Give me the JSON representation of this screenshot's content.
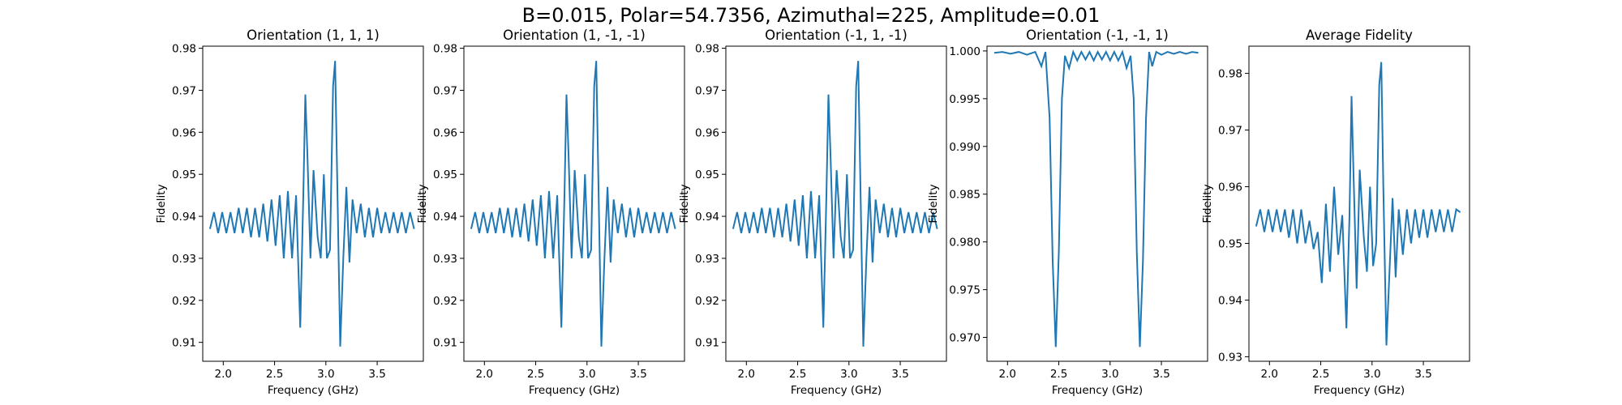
{
  "figure": {
    "title": "B=0.015, Polar=54.7356, Azimuthal=225, Amplitude=0.01"
  },
  "colors": {
    "series": "#1f77b4"
  },
  "chart_data": [
    {
      "type": "line",
      "title": "Orientation (1, 1, 1)",
      "xlabel": "Frequency (GHz)",
      "ylabel": "Fidelity",
      "xlim": [
        1.8,
        3.95
      ],
      "ylim": [
        0.9055,
        0.9805
      ],
      "xticks": [
        "2.0",
        "2.5",
        "3.0",
        "3.5"
      ],
      "yticks": [
        "0.91",
        "0.92",
        "0.93",
        "0.94",
        "0.95",
        "0.96",
        "0.97",
        "0.98"
      ],
      "grid": false,
      "series_x": [
        1.87,
        1.91,
        1.95,
        1.99,
        2.03,
        2.07,
        2.11,
        2.15,
        2.19,
        2.23,
        2.27,
        2.31,
        2.35,
        2.39,
        2.43,
        2.47,
        2.51,
        2.55,
        2.59,
        2.63,
        2.67,
        2.71,
        2.75,
        2.78,
        2.8,
        2.82,
        2.85,
        2.88,
        2.92,
        2.95,
        2.98,
        3.01,
        3.04,
        3.07,
        3.09,
        3.11,
        3.14,
        3.17,
        3.2,
        3.23,
        3.26,
        3.3,
        3.34,
        3.38,
        3.42,
        3.46,
        3.5,
        3.54,
        3.58,
        3.62,
        3.66,
        3.7,
        3.74,
        3.78,
        3.82,
        3.86
      ],
      "series_y": [
        0.937,
        0.941,
        0.936,
        0.941,
        0.936,
        0.941,
        0.936,
        0.942,
        0.936,
        0.942,
        0.935,
        0.942,
        0.935,
        0.943,
        0.934,
        0.944,
        0.933,
        0.945,
        0.93,
        0.946,
        0.93,
        0.945,
        0.9135,
        0.945,
        0.969,
        0.955,
        0.93,
        0.951,
        0.935,
        0.93,
        0.95,
        0.93,
        0.932,
        0.971,
        0.977,
        0.95,
        0.909,
        0.93,
        0.947,
        0.929,
        0.944,
        0.936,
        0.943,
        0.935,
        0.942,
        0.935,
        0.942,
        0.936,
        0.941,
        0.936,
        0.941,
        0.936,
        0.941,
        0.936,
        0.941,
        0.937
      ]
    },
    {
      "type": "line",
      "title": "Orientation (1, -1, -1)",
      "xlabel": "Frequency (GHz)",
      "ylabel": "Fidelity",
      "xlim": [
        1.8,
        3.95
      ],
      "ylim": [
        0.9055,
        0.9805
      ],
      "xticks": [
        "2.0",
        "2.5",
        "3.0",
        "3.5"
      ],
      "yticks": [
        "0.91",
        "0.92",
        "0.93",
        "0.94",
        "0.95",
        "0.96",
        "0.97",
        "0.98"
      ],
      "grid": false,
      "series_x": [
        1.87,
        1.91,
        1.95,
        1.99,
        2.03,
        2.07,
        2.11,
        2.15,
        2.19,
        2.23,
        2.27,
        2.31,
        2.35,
        2.39,
        2.43,
        2.47,
        2.51,
        2.55,
        2.59,
        2.63,
        2.67,
        2.71,
        2.75,
        2.78,
        2.8,
        2.82,
        2.85,
        2.88,
        2.92,
        2.95,
        2.98,
        3.01,
        3.04,
        3.07,
        3.09,
        3.11,
        3.14,
        3.17,
        3.2,
        3.23,
        3.26,
        3.3,
        3.34,
        3.38,
        3.42,
        3.46,
        3.5,
        3.54,
        3.58,
        3.62,
        3.66,
        3.7,
        3.74,
        3.78,
        3.82,
        3.86
      ],
      "series_y": [
        0.937,
        0.941,
        0.936,
        0.941,
        0.936,
        0.941,
        0.936,
        0.942,
        0.936,
        0.942,
        0.935,
        0.942,
        0.935,
        0.943,
        0.934,
        0.944,
        0.933,
        0.945,
        0.93,
        0.946,
        0.93,
        0.945,
        0.9135,
        0.945,
        0.969,
        0.955,
        0.93,
        0.951,
        0.935,
        0.93,
        0.95,
        0.93,
        0.932,
        0.971,
        0.977,
        0.95,
        0.909,
        0.93,
        0.947,
        0.929,
        0.944,
        0.936,
        0.943,
        0.935,
        0.942,
        0.935,
        0.942,
        0.936,
        0.941,
        0.936,
        0.941,
        0.936,
        0.941,
        0.936,
        0.941,
        0.937
      ]
    },
    {
      "type": "line",
      "title": "Orientation (-1, 1, -1)",
      "xlabel": "Frequency (GHz)",
      "ylabel": "Fidelity",
      "xlim": [
        1.8,
        3.95
      ],
      "ylim": [
        0.9055,
        0.9805
      ],
      "xticks": [
        "2.0",
        "2.5",
        "3.0",
        "3.5"
      ],
      "yticks": [
        "0.91",
        "0.92",
        "0.93",
        "0.94",
        "0.95",
        "0.96",
        "0.97",
        "0.98"
      ],
      "grid": false,
      "series_x": [
        1.87,
        1.91,
        1.95,
        1.99,
        2.03,
        2.07,
        2.11,
        2.15,
        2.19,
        2.23,
        2.27,
        2.31,
        2.35,
        2.39,
        2.43,
        2.47,
        2.51,
        2.55,
        2.59,
        2.63,
        2.67,
        2.71,
        2.75,
        2.78,
        2.8,
        2.82,
        2.85,
        2.88,
        2.92,
        2.95,
        2.98,
        3.01,
        3.04,
        3.07,
        3.09,
        3.11,
        3.14,
        3.17,
        3.2,
        3.23,
        3.26,
        3.3,
        3.34,
        3.38,
        3.42,
        3.46,
        3.5,
        3.54,
        3.58,
        3.62,
        3.66,
        3.7,
        3.74,
        3.78,
        3.82,
        3.86
      ],
      "series_y": [
        0.937,
        0.941,
        0.936,
        0.941,
        0.936,
        0.941,
        0.936,
        0.942,
        0.936,
        0.942,
        0.935,
        0.942,
        0.935,
        0.943,
        0.934,
        0.944,
        0.933,
        0.945,
        0.93,
        0.946,
        0.93,
        0.945,
        0.9135,
        0.945,
        0.969,
        0.955,
        0.93,
        0.951,
        0.935,
        0.93,
        0.95,
        0.93,
        0.932,
        0.971,
        0.977,
        0.95,
        0.909,
        0.93,
        0.947,
        0.929,
        0.944,
        0.936,
        0.943,
        0.935,
        0.942,
        0.935,
        0.942,
        0.936,
        0.941,
        0.936,
        0.941,
        0.936,
        0.941,
        0.936,
        0.941,
        0.937
      ]
    },
    {
      "type": "line",
      "title": "Orientation (-1, -1, 1)",
      "xlabel": "Frequency (GHz)",
      "ylabel": "Fidelity",
      "xlim": [
        1.8,
        3.95
      ],
      "ylim": [
        0.9675,
        1.0005
      ],
      "xticks": [
        "2.0",
        "2.5",
        "3.0",
        "3.5"
      ],
      "yticks": [
        "0.970",
        "0.975",
        "0.980",
        "0.985",
        "0.990",
        "0.995",
        "1.000"
      ],
      "grid": false,
      "series_x": [
        1.87,
        1.95,
        2.03,
        2.11,
        2.19,
        2.27,
        2.33,
        2.37,
        2.41,
        2.44,
        2.47,
        2.5,
        2.53,
        2.56,
        2.6,
        2.64,
        2.68,
        2.72,
        2.76,
        2.8,
        2.84,
        2.88,
        2.92,
        2.96,
        3.0,
        3.04,
        3.08,
        3.12,
        3.16,
        3.2,
        3.23,
        3.26,
        3.29,
        3.32,
        3.35,
        3.38,
        3.41,
        3.45,
        3.5,
        3.56,
        3.62,
        3.68,
        3.74,
        3.8,
        3.86
      ],
      "series_y": [
        0.9998,
        0.9999,
        0.9997,
        0.9999,
        0.9996,
        0.9999,
        0.9984,
        0.9999,
        0.993,
        0.978,
        0.969,
        0.979,
        0.995,
        0.9995,
        0.9982,
        0.9999,
        0.999,
        0.9999,
        0.9991,
        0.9999,
        0.999,
        0.9999,
        0.9991,
        0.9999,
        0.999,
        0.9999,
        0.999,
        0.9999,
        0.9982,
        0.9995,
        0.995,
        0.979,
        0.969,
        0.978,
        0.993,
        0.9999,
        0.9984,
        0.9999,
        0.9996,
        0.9999,
        0.9997,
        0.9999,
        0.9997,
        0.9999,
        0.9998
      ]
    },
    {
      "type": "line",
      "title": "Average Fidelity",
      "xlabel": "Frequency (GHz)",
      "ylabel": "Fidelity",
      "xlim": [
        1.8,
        3.95
      ],
      "ylim": [
        0.9292,
        0.9848
      ],
      "xticks": [
        "2.0",
        "2.5",
        "3.0",
        "3.5"
      ],
      "yticks": [
        "0.93",
        "0.94",
        "0.95",
        "0.96",
        "0.97",
        "0.98"
      ],
      "grid": false,
      "series_x": [
        1.87,
        1.91,
        1.95,
        1.99,
        2.03,
        2.07,
        2.11,
        2.15,
        2.19,
        2.23,
        2.27,
        2.31,
        2.35,
        2.39,
        2.43,
        2.47,
        2.51,
        2.55,
        2.59,
        2.63,
        2.67,
        2.71,
        2.75,
        2.78,
        2.8,
        2.82,
        2.85,
        2.88,
        2.92,
        2.95,
        2.98,
        3.01,
        3.04,
        3.07,
        3.09,
        3.11,
        3.14,
        3.17,
        3.2,
        3.23,
        3.26,
        3.3,
        3.34,
        3.38,
        3.42,
        3.46,
        3.5,
        3.54,
        3.58,
        3.62,
        3.66,
        3.7,
        3.74,
        3.78,
        3.82,
        3.86
      ],
      "series_y": [
        0.953,
        0.956,
        0.952,
        0.956,
        0.952,
        0.956,
        0.952,
        0.956,
        0.951,
        0.956,
        0.95,
        0.956,
        0.95,
        0.954,
        0.949,
        0.952,
        0.943,
        0.957,
        0.945,
        0.96,
        0.948,
        0.955,
        0.935,
        0.955,
        0.976,
        0.962,
        0.942,
        0.963,
        0.951,
        0.945,
        0.96,
        0.946,
        0.95,
        0.978,
        0.982,
        0.96,
        0.932,
        0.945,
        0.958,
        0.944,
        0.956,
        0.948,
        0.956,
        0.95,
        0.956,
        0.951,
        0.956,
        0.951,
        0.956,
        0.952,
        0.956,
        0.952,
        0.956,
        0.952,
        0.956,
        0.9555
      ]
    }
  ]
}
